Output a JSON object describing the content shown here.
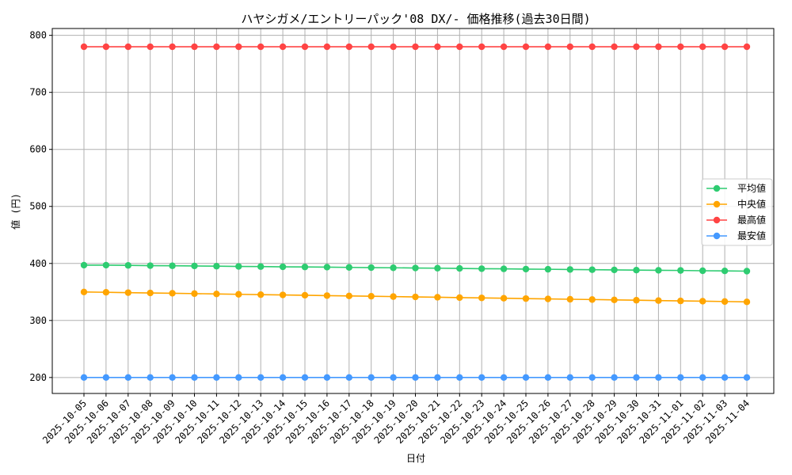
{
  "chart_data": {
    "type": "line",
    "title": "ハヤシガメ/エントリーパック'08 DX/- 価格推移(過去30日間)",
    "xlabel": "日付",
    "ylabel": "値 (円)",
    "ylim": [
      172,
      812
    ],
    "yticks": [
      200,
      300,
      400,
      500,
      600,
      700,
      800
    ],
    "grid": true,
    "legend_position": "center-right",
    "categories": [
      "2025-10-05",
      "2025-10-06",
      "2025-10-07",
      "2025-10-08",
      "2025-10-09",
      "2025-10-10",
      "2025-10-11",
      "2025-10-12",
      "2025-10-13",
      "2025-10-14",
      "2025-10-15",
      "2025-10-16",
      "2025-10-17",
      "2025-10-18",
      "2025-10-19",
      "2025-10-20",
      "2025-10-21",
      "2025-10-22",
      "2025-10-23",
      "2025-10-24",
      "2025-10-25",
      "2025-10-26",
      "2025-10-27",
      "2025-10-28",
      "2025-10-29",
      "2025-10-30",
      "2025-10-31",
      "2025-11-01",
      "2025-11-02",
      "2025-11-03",
      "2025-11-04"
    ],
    "series": [
      {
        "name": "平均値",
        "color": "#2ecc71",
        "values": [
          397,
          397,
          396.6,
          396.1,
          395.9,
          395.6,
          395.2,
          394.7,
          394.5,
          394.1,
          393.8,
          393.5,
          393.1,
          392.7,
          392.4,
          392,
          391.7,
          391.3,
          390.8,
          390.5,
          390.1,
          389.8,
          389.4,
          389,
          388.7,
          388.3,
          388,
          387.7,
          387.2,
          386.9,
          386.5
        ]
      },
      {
        "name": "中央値",
        "color": "#ffa500",
        "values": [
          350,
          349.4,
          348.8,
          348.2,
          347.7,
          347.1,
          346.5,
          345.9,
          345.3,
          344.8,
          344.2,
          343.6,
          343,
          342.5,
          341.9,
          341.3,
          340.7,
          340.1,
          339.6,
          339,
          338.4,
          337.8,
          337.2,
          336.7,
          336.1,
          335.5,
          334.9,
          334.3,
          333.8,
          333.2,
          332.6
        ]
      },
      {
        "name": "最高値",
        "color": "#ff4444",
        "values": [
          780,
          780,
          780,
          780,
          780,
          780,
          780,
          780,
          780,
          780,
          780,
          780,
          780,
          780,
          780,
          780,
          780,
          780,
          780,
          780,
          780,
          780,
          780,
          780,
          780,
          780,
          780,
          780,
          780,
          780,
          780
        ]
      },
      {
        "name": "最安値",
        "color": "#4499ff",
        "values": [
          200,
          200,
          200,
          200,
          200,
          200,
          200,
          200,
          200,
          200,
          200,
          200,
          200,
          200,
          200,
          200,
          200,
          200,
          200,
          200,
          200,
          200,
          200,
          200,
          200,
          200,
          200,
          200,
          200,
          200,
          200
        ]
      }
    ]
  }
}
